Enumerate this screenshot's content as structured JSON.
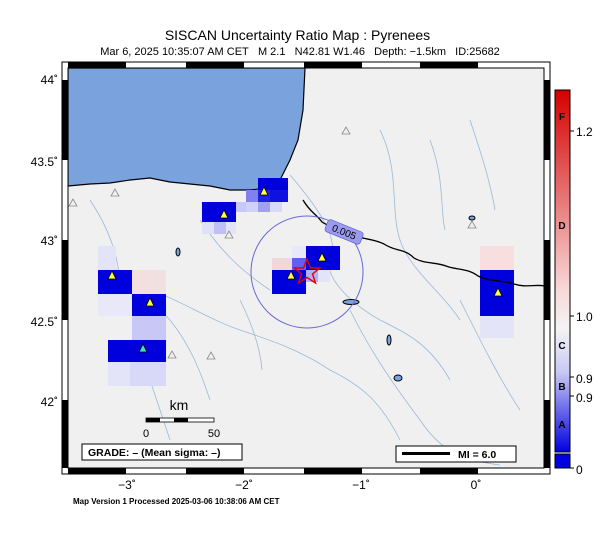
{
  "map": {
    "title": "SISCAN Uncertainty Ratio Map : Pyrenees",
    "event_line": {
      "date": "Mar  6, 2025 10:35:07 AM CET",
      "magnitude": "M 2.1",
      "location": "N42.81 W1.46",
      "depth": "Depth: −1.5km",
      "id": "ID:25682"
    },
    "lat_labels": [
      "44˚",
      "43.5˚",
      "43˚",
      "42.5˚",
      "42˚"
    ],
    "lon_labels": [
      "−3˚",
      "−2˚",
      "−1˚",
      "0˚"
    ],
    "contour_label": "0.005",
    "scale_bar": {
      "unit": "km",
      "start": "0",
      "end": "50"
    },
    "grade_box": "GRADE: – (Mean sigma: –)",
    "mi_legend": "MI = 6.0",
    "footer": "Map Version 1 Processed 2025-03-06 10:38:06 AM CET",
    "colors": {
      "sea": "#7aa3de",
      "land": "#f0f0f0",
      "river": "#9ab8d8",
      "grid_high": "#0000dd",
      "epicenter": "#e00000"
    }
  },
  "colorbar": {
    "right_labels": [
      "1.2",
      "1.0",
      "0.9",
      "0.9",
      "0"
    ],
    "grade_letters": [
      "F",
      "D",
      "C",
      "B",
      "A"
    ],
    "colors": {
      "top": "#d40000",
      "mid": "#f4f4f4",
      "bottom": "#0000e0"
    }
  }
}
